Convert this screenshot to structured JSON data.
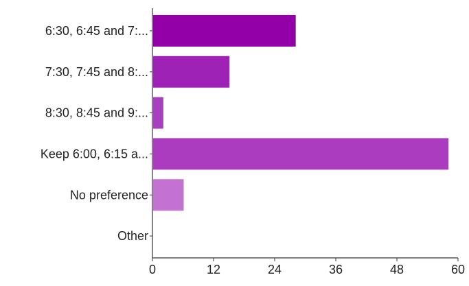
{
  "chart_data": {
    "type": "bar",
    "orientation": "horizontal",
    "categories": [
      "6:30, 6:45 and 7:...",
      "7:30, 7:45 and 8:...",
      "8:30, 8:45 and 9:...",
      "Keep 6:00, 6:15 a...",
      "No preference",
      "Other"
    ],
    "values": [
      28,
      15,
      2,
      58,
      6,
      0
    ],
    "xlim": [
      0,
      60
    ],
    "xticks": [
      0,
      12,
      24,
      36,
      48,
      60
    ],
    "title": "",
    "xlabel": "",
    "ylabel": "",
    "grid": false,
    "legend": "none",
    "colors": [
      "#9400a8",
      "#9f22b6",
      "#a73fbe",
      "#ac3cbf",
      "#c372d2",
      "#d9a6e2"
    ]
  }
}
